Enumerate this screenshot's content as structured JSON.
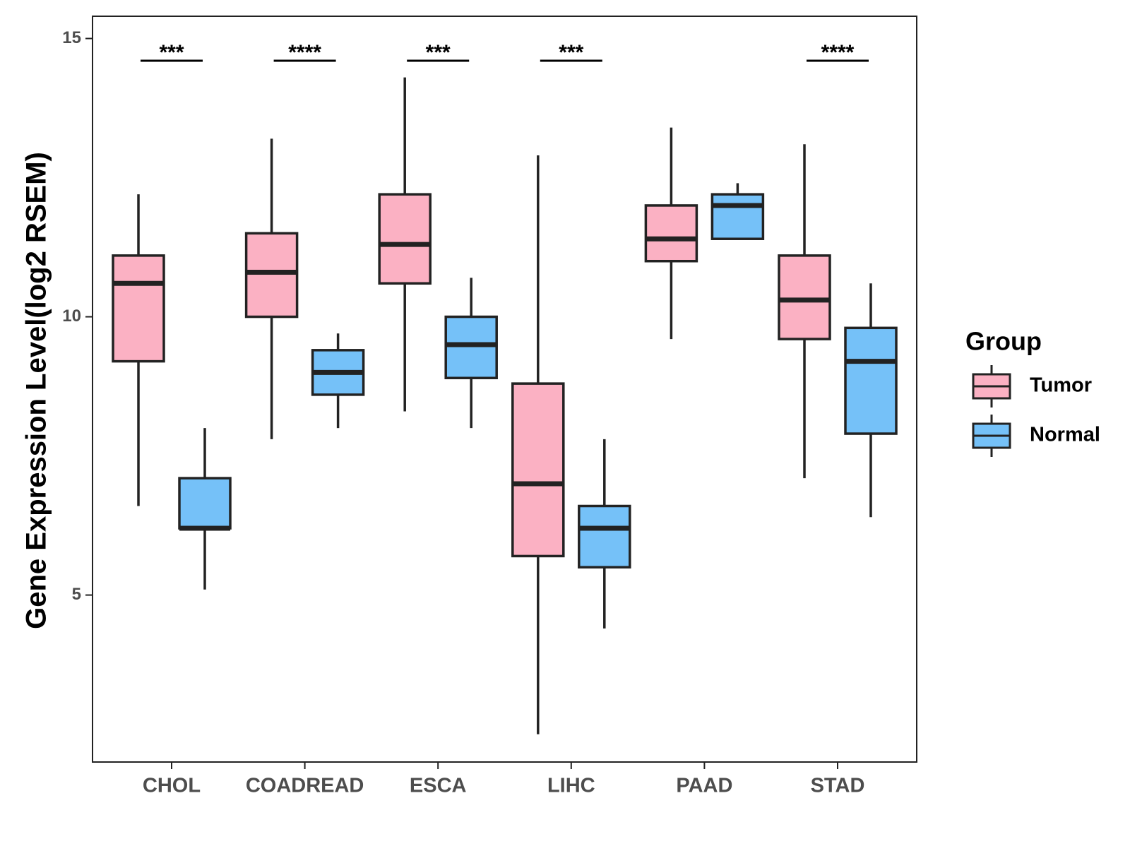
{
  "chart_data": {
    "type": "box",
    "title": "",
    "xlabel": "",
    "ylabel": "Gene Expression Level(log2 RSEM)",
    "ylim": [
      2.0,
      15.4
    ],
    "yticks": [
      5,
      10,
      15
    ],
    "grid": false,
    "legend_position": "right",
    "legend_title": "Group",
    "categories": [
      "CHOL",
      "COADREAD",
      "ESCA",
      "LIHC",
      "PAAD",
      "STAD"
    ],
    "series": [
      {
        "name": "Tumor",
        "color": "#FBB1C3",
        "boxes": [
          {
            "whisker_low": 6.6,
            "q1": 9.2,
            "median": 10.6,
            "q3": 11.1,
            "whisker_high": 12.2
          },
          {
            "whisker_low": 7.8,
            "q1": 10.0,
            "median": 10.8,
            "q3": 11.5,
            "whisker_high": 13.2
          },
          {
            "whisker_low": 8.3,
            "q1": 10.6,
            "median": 11.3,
            "q3": 12.2,
            "whisker_high": 14.3
          },
          {
            "whisker_low": 2.5,
            "q1": 5.7,
            "median": 7.0,
            "q3": 8.8,
            "whisker_high": 12.9
          },
          {
            "whisker_low": 9.6,
            "q1": 11.0,
            "median": 11.4,
            "q3": 12.0,
            "whisker_high": 13.4
          },
          {
            "whisker_low": 7.1,
            "q1": 9.6,
            "median": 10.3,
            "q3": 11.1,
            "whisker_high": 13.1
          }
        ]
      },
      {
        "name": "Normal",
        "color": "#75C1F8",
        "boxes": [
          {
            "whisker_low": 5.1,
            "q1": 6.2,
            "median": 6.2,
            "q3": 7.1,
            "whisker_high": 8.0
          },
          {
            "whisker_low": 8.0,
            "q1": 8.6,
            "median": 9.0,
            "q3": 9.4,
            "whisker_high": 9.7
          },
          {
            "whisker_low": 8.0,
            "q1": 8.9,
            "median": 9.5,
            "q3": 10.0,
            "whisker_high": 10.7
          },
          {
            "whisker_low": 4.4,
            "q1": 5.5,
            "median": 6.2,
            "q3": 6.6,
            "whisker_high": 7.8
          },
          {
            "whisker_low": 11.4,
            "q1": 11.4,
            "median": 12.0,
            "q3": 12.2,
            "whisker_high": 12.4
          },
          {
            "whisker_low": 6.4,
            "q1": 7.9,
            "median": 9.2,
            "q3": 9.8,
            "whisker_high": 10.6
          }
        ]
      }
    ],
    "significance": [
      "***",
      "****",
      "***",
      "***",
      "",
      "****"
    ],
    "significance_level": 14.6
  }
}
